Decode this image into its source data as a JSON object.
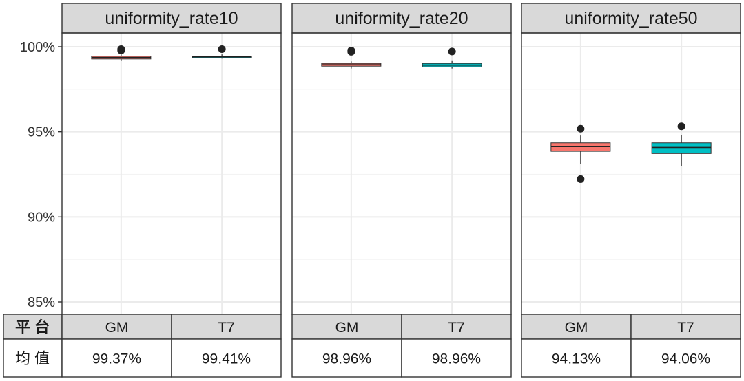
{
  "chart_data": {
    "type": "boxplot",
    "y_axis": {
      "ticks": [
        85,
        90,
        95,
        100
      ],
      "tick_labels": [
        "85%",
        "90%",
        "95%",
        "100%"
      ],
      "ylim": [
        84.5,
        101.3
      ]
    },
    "categories": [
      "GM",
      "T7"
    ],
    "panels": [
      {
        "title": "uniformity_rate10",
        "boxes": [
          {
            "category": "GM",
            "color": "#f8766d",
            "q1": 99.28,
            "median": 99.36,
            "q3": 99.44,
            "whisker_low": 99.18,
            "whisker_high": 99.55,
            "outliers": [
              99.78,
              99.86
            ]
          },
          {
            "category": "T7",
            "color": "#00bfc4",
            "q1": 99.36,
            "median": 99.4,
            "q3": 99.44,
            "whisker_low": 99.3,
            "whisker_high": 99.55,
            "outliers": [
              99.86
            ]
          }
        ]
      },
      {
        "title": "uniformity_rate20",
        "boxes": [
          {
            "category": "GM",
            "color": "#f8766d",
            "q1": 98.86,
            "median": 98.94,
            "q3": 99.02,
            "whisker_low": 98.72,
            "whisker_high": 99.14,
            "outliers": [
              99.7,
              99.78
            ]
          },
          {
            "category": "T7",
            "color": "#00bfc4",
            "q1": 98.82,
            "median": 98.92,
            "q3": 99.02,
            "whisker_low": 98.72,
            "whisker_high": 99.2,
            "outliers": [
              99.72
            ]
          }
        ]
      },
      {
        "title": "uniformity_rate50",
        "boxes": [
          {
            "category": "GM",
            "color": "#f8766d",
            "q1": 93.85,
            "median": 94.13,
            "q3": 94.35,
            "whisker_low": 93.1,
            "whisker_high": 94.78,
            "outliers": [
              95.18,
              92.22
            ]
          },
          {
            "category": "T7",
            "color": "#00bfc4",
            "q1": 93.72,
            "median": 94.08,
            "q3": 94.35,
            "whisker_low": 93.0,
            "whisker_high": 94.8,
            "outliers": [
              95.32
            ]
          }
        ]
      }
    ],
    "table": {
      "row_headers": [
        "平 台",
        "均 值"
      ],
      "rows": [
        [
          "GM",
          "T7",
          "GM",
          "T7",
          "GM",
          "T7"
        ],
        [
          "99.37%",
          "99.41%",
          "98.96%",
          "98.96%",
          "94.13%",
          "94.06%"
        ]
      ]
    }
  }
}
